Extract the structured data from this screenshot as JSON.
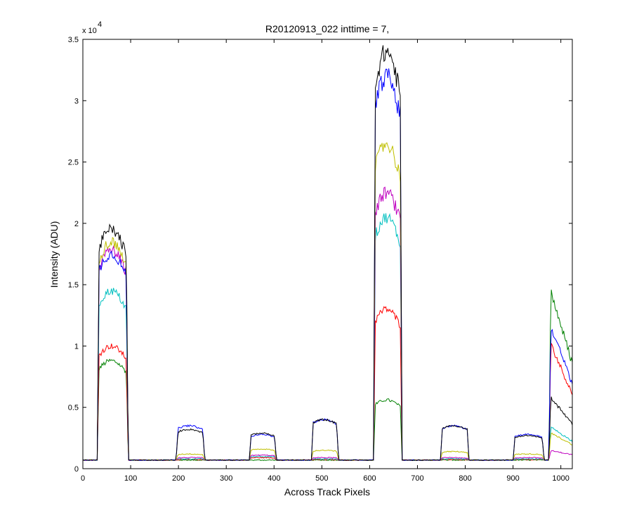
{
  "chart_data": {
    "type": "line",
    "title": "R20120913_022 inttime = 7,",
    "xlabel": "Across Track Pixels",
    "ylabel": "Intensity (ADU)",
    "xlim": [
      0,
      1024
    ],
    "ylim": [
      0,
      35000
    ],
    "y_multiplier_text": "x 10",
    "y_multiplier_exponent": "4",
    "x_ticks": [
      0,
      100,
      200,
      300,
      400,
      500,
      600,
      700,
      800,
      900,
      1000
    ],
    "x_tick_labels": [
      "0",
      "100",
      "200",
      "300",
      "400",
      "500",
      "600",
      "700",
      "800",
      "900",
      "1000"
    ],
    "y_ticks": [
      0,
      5000,
      10000,
      15000,
      20000,
      25000,
      30000,
      35000
    ],
    "y_tick_labels": [
      "0",
      "0.5",
      "1",
      "1.5",
      "2",
      "2.5",
      "3",
      "3.5"
    ],
    "grid": false,
    "baseline": 700,
    "segments": [
      {
        "start": 30,
        "end": 95
      },
      {
        "start": 195,
        "end": 255
      },
      {
        "start": 348,
        "end": 405
      },
      {
        "start": 478,
        "end": 535
      },
      {
        "start": 608,
        "end": 668
      },
      {
        "start": 748,
        "end": 808
      },
      {
        "start": 900,
        "end": 965
      },
      {
        "start": 975,
        "end": 1024
      }
    ],
    "series": [
      {
        "color": "#000000",
        "values": [
          19500,
          3200,
          2900,
          4000,
          34000,
          3500,
          2700,
          6000
        ]
      },
      {
        "color": "#0000ff",
        "values": [
          17500,
          3500,
          2800,
          4000,
          32000,
          3500,
          2800,
          12000
        ]
      },
      {
        "color": "#bfbf00",
        "values": [
          18500,
          1200,
          1600,
          1500,
          26500,
          1400,
          1200,
          3000
        ]
      },
      {
        "color": "#bf00bf",
        "values": [
          17800,
          900,
          1100,
          900,
          22500,
          900,
          900,
          1500
        ]
      },
      {
        "color": "#00bfbf",
        "values": [
          14500,
          800,
          1000,
          800,
          20500,
          800,
          800,
          3500
        ]
      },
      {
        "color": "#ff0000",
        "values": [
          10000,
          750,
          900,
          750,
          13000,
          750,
          750,
          10500
        ]
      },
      {
        "color": "#008000",
        "values": [
          8800,
          700,
          700,
          700,
          5600,
          700,
          700,
          15000
        ]
      }
    ]
  }
}
